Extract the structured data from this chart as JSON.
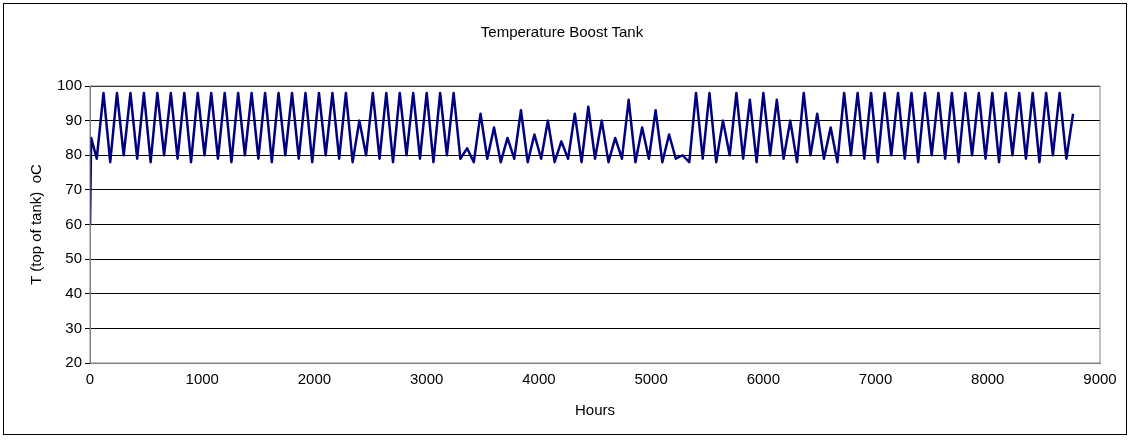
{
  "chart_data": {
    "type": "line",
    "title": "Temperature Boost Tank",
    "xlabel": "Hours",
    "ylabel": "T (top of tank)  oC",
    "x": [
      0,
      10,
      60,
      120,
      180,
      240,
      300,
      360,
      420,
      480,
      540,
      600,
      660,
      720,
      780,
      840,
      900,
      960,
      1020,
      1080,
      1140,
      1200,
      1260,
      1320,
      1380,
      1440,
      1500,
      1560,
      1620,
      1680,
      1740,
      1800,
      1860,
      1920,
      1980,
      2040,
      2100,
      2160,
      2220,
      2280,
      2340,
      2400,
      2460,
      2520,
      2580,
      2640,
      2700,
      2760,
      2820,
      2880,
      2940,
      3000,
      3060,
      3120,
      3180,
      3240,
      3300,
      3360,
      3420,
      3480,
      3540,
      3600,
      3660,
      3720,
      3780,
      3840,
      3900,
      3960,
      4020,
      4080,
      4140,
      4200,
      4260,
      4320,
      4380,
      4440,
      4500,
      4560,
      4620,
      4680,
      4740,
      4800,
      4860,
      4920,
      4980,
      5040,
      5100,
      5160,
      5220,
      5280,
      5340,
      5400,
      5460,
      5520,
      5580,
      5640,
      5700,
      5760,
      5820,
      5880,
      5940,
      6000,
      6060,
      6120,
      6180,
      6240,
      6300,
      6360,
      6420,
      6480,
      6540,
      6600,
      6660,
      6720,
      6780,
      6840,
      6900,
      6960,
      7020,
      7080,
      7140,
      7200,
      7260,
      7320,
      7380,
      7440,
      7500,
      7560,
      7620,
      7680,
      7740,
      7800,
      7860,
      7920,
      7980,
      8040,
      8100,
      8160,
      8220,
      8280,
      8340,
      8400,
      8460,
      8520,
      8580,
      8640,
      8700,
      8760
    ],
    "series": [
      {
        "color": "#000080",
        "values": [
          60,
          85,
          79,
          98,
          78,
          98,
          80,
          98,
          79,
          98,
          78,
          98,
          80,
          98,
          79,
          98,
          78,
          98,
          80,
          98,
          79,
          98,
          78,
          98,
          80,
          98,
          79,
          98,
          78,
          98,
          80,
          98,
          79,
          98,
          78,
          98,
          80,
          98,
          79,
          98,
          78,
          90,
          80,
          98,
          79,
          98,
          78,
          98,
          80,
          98,
          79,
          98,
          78,
          98,
          80,
          98,
          79,
          82,
          78,
          92,
          79,
          88,
          78,
          85,
          79,
          93,
          78,
          86,
          79,
          90,
          78,
          84,
          79,
          92,
          78,
          94,
          79,
          90,
          78,
          85,
          79,
          96,
          78,
          88,
          79,
          93,
          78,
          86,
          79,
          80,
          78,
          98,
          79,
          98,
          78,
          90,
          80,
          98,
          79,
          96,
          78,
          98,
          80,
          96,
          79,
          90,
          78,
          98,
          80,
          92,
          79,
          88,
          78,
          98,
          80,
          98,
          79,
          98,
          78,
          98,
          80,
          98,
          79,
          98,
          78,
          98,
          80,
          98,
          79,
          98,
          78,
          98,
          80,
          98,
          79,
          98,
          78,
          98,
          80,
          98,
          79,
          98,
          78,
          98,
          80,
          98,
          79,
          92
        ]
      }
    ],
    "xlim": [
      0,
      9000
    ],
    "xticks": [
      0,
      1000,
      2000,
      3000,
      4000,
      5000,
      6000,
      7000,
      8000,
      9000
    ],
    "ylim": [
      20,
      100
    ],
    "yticks": [
      20,
      30,
      40,
      50,
      60,
      70,
      80,
      90,
      100
    ],
    "grid": "y",
    "legend": false,
    "marker": "none",
    "line_style": "solid"
  }
}
